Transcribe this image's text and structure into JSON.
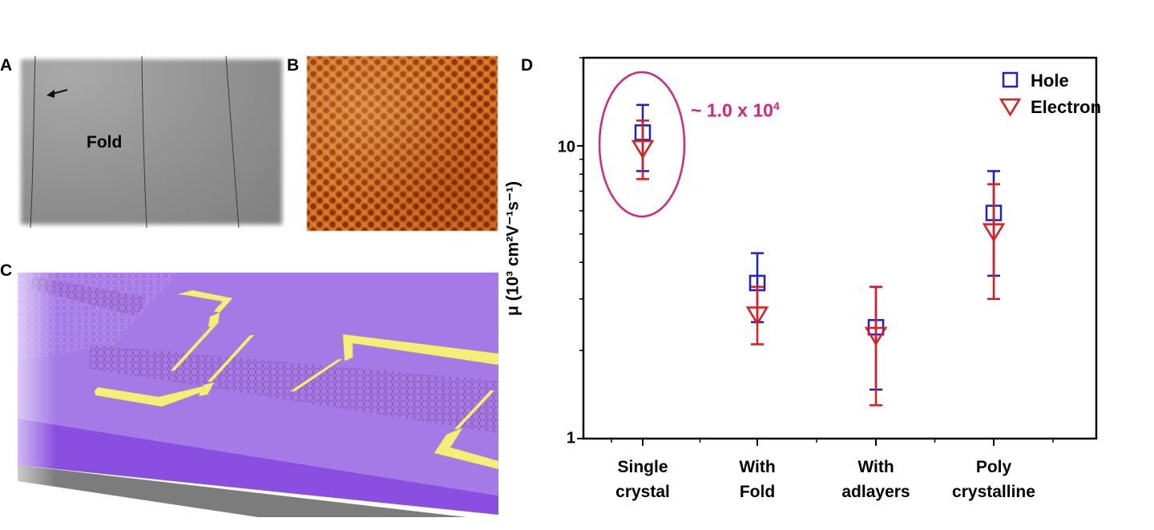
{
  "panels": {
    "a_label": "A",
    "b_label": "B",
    "c_label": "C",
    "d_label": "D",
    "fold_annotation": "Fold"
  },
  "chart_data": {
    "type": "scatter",
    "title": "",
    "xlabel": "",
    "ylabel": "μ (10³ cm²V⁻¹s⁻¹)",
    "y_scale": "log",
    "ylim": [
      1,
      20
    ],
    "y_ticks": [
      "1",
      "10"
    ],
    "grid": false,
    "legend_position": "top-right",
    "categories": [
      {
        "line1": "Single",
        "line2": "crystal"
      },
      {
        "line1": "With",
        "line2": "Fold"
      },
      {
        "line1": "With",
        "line2": "adlayers"
      },
      {
        "line1": "Poly",
        "line2": "crystalline"
      }
    ],
    "series": [
      {
        "name": "Hole",
        "marker": "square",
        "color": "#1f1fd0",
        "values": [
          11.1,
          3.4,
          2.4,
          5.9
        ],
        "err_high": [
          13.8,
          4.3,
          3.3,
          8.2
        ],
        "err_low": [
          8.2,
          2.5,
          1.47,
          3.6
        ]
      },
      {
        "name": "Electron",
        "marker": "triangle-down",
        "color": "#e01b1b",
        "values": [
          10.0,
          2.7,
          2.3,
          5.2
        ],
        "err_high": [
          12.2,
          3.3,
          3.3,
          7.4
        ],
        "err_low": [
          7.7,
          2.1,
          1.3,
          3.0
        ]
      }
    ],
    "annotation": {
      "text": "~ 1.0 x 10",
      "superscript": "4",
      "color": "#d6247f",
      "highlights": "Single crystal"
    }
  }
}
